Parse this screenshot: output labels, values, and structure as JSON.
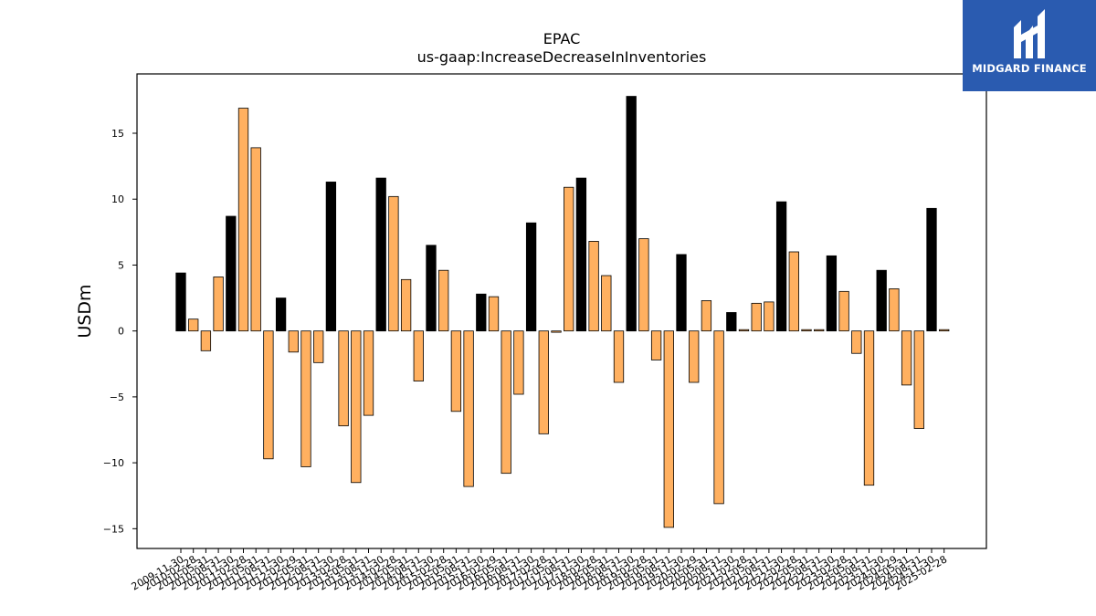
{
  "brand": {
    "name": "MIDGARD FINANCE",
    "bg_color": "#2a5bb0"
  },
  "chart_data": {
    "type": "bar",
    "title": "EPAC",
    "subtitle": "us-gaap:IncreaseDecreaseInInventories",
    "ylabel": "USDm",
    "xlabel": "",
    "ylim": [
      -16.5,
      19.5
    ],
    "yticks": [
      -15,
      -10,
      -5,
      0,
      5,
      10,
      15
    ],
    "grid": false,
    "colors": {
      "fiscal_year_end": "#000000",
      "quarter": "#ffb060"
    },
    "categories": [
      "2009-11-30",
      "2010-02-28",
      "2010-05-31",
      "2010-08-31",
      "2010-11-30",
      "2011-02-28",
      "2011-05-31",
      "2011-08-31",
      "2011-11-30",
      "2012-02-29",
      "2012-05-31",
      "2012-08-31",
      "2012-11-30",
      "2013-02-28",
      "2013-05-31",
      "2013-08-31",
      "2013-11-30",
      "2014-02-28",
      "2014-05-31",
      "2014-08-31",
      "2014-11-30",
      "2015-02-28",
      "2015-05-31",
      "2015-08-31",
      "2015-11-30",
      "2016-02-29",
      "2016-05-31",
      "2016-08-31",
      "2016-11-30",
      "2017-02-28",
      "2017-05-31",
      "2017-08-31",
      "2017-11-30",
      "2018-02-28",
      "2018-05-31",
      "2018-08-31",
      "2018-11-30",
      "2019-02-28",
      "2019-05-31",
      "2019-08-31",
      "2019-11-30",
      "2020-02-29",
      "2020-05-31",
      "2020-08-31",
      "2020-11-30",
      "2021-02-28",
      "2021-05-31",
      "2021-08-31",
      "2021-11-30",
      "2022-02-28",
      "2022-05-31",
      "2022-08-31",
      "2022-11-30",
      "2023-02-28",
      "2023-05-31",
      "2023-08-31",
      "2023-11-30",
      "2024-02-29",
      "2024-05-31",
      "2024-08-31",
      "2024-11-30",
      "2025-02-28"
    ],
    "values": [
      4.4,
      0.9,
      -1.5,
      4.1,
      8.7,
      16.9,
      13.9,
      -9.7,
      2.5,
      -1.6,
      -10.3,
      -2.4,
      11.3,
      -7.2,
      -11.5,
      -6.4,
      11.6,
      10.2,
      3.9,
      -3.8,
      6.5,
      4.6,
      -6.1,
      -11.8,
      2.8,
      2.6,
      -10.8,
      -4.8,
      8.2,
      -7.8,
      -0.1,
      10.9,
      11.6,
      6.8,
      4.2,
      -3.9,
      17.8,
      7.0,
      -2.2,
      -14.9,
      5.8,
      -3.9,
      2.3,
      -13.1,
      1.4,
      0.1,
      2.1,
      2.2,
      9.8,
      6.0,
      0.1,
      0.1,
      5.7,
      3.0,
      -1.7,
      -11.7,
      4.6,
      3.2,
      -4.1,
      -7.4,
      9.3,
      0.1
    ],
    "fiscal_year_end": [
      true,
      false,
      false,
      false,
      true,
      false,
      false,
      false,
      true,
      false,
      false,
      false,
      true,
      false,
      false,
      false,
      true,
      false,
      false,
      false,
      true,
      false,
      false,
      false,
      true,
      false,
      false,
      false,
      true,
      false,
      false,
      false,
      true,
      false,
      false,
      false,
      true,
      false,
      false,
      false,
      true,
      false,
      false,
      false,
      true,
      false,
      false,
      false,
      true,
      false,
      false,
      false,
      true,
      false,
      false,
      false,
      true,
      false,
      false,
      false,
      true,
      false
    ]
  }
}
